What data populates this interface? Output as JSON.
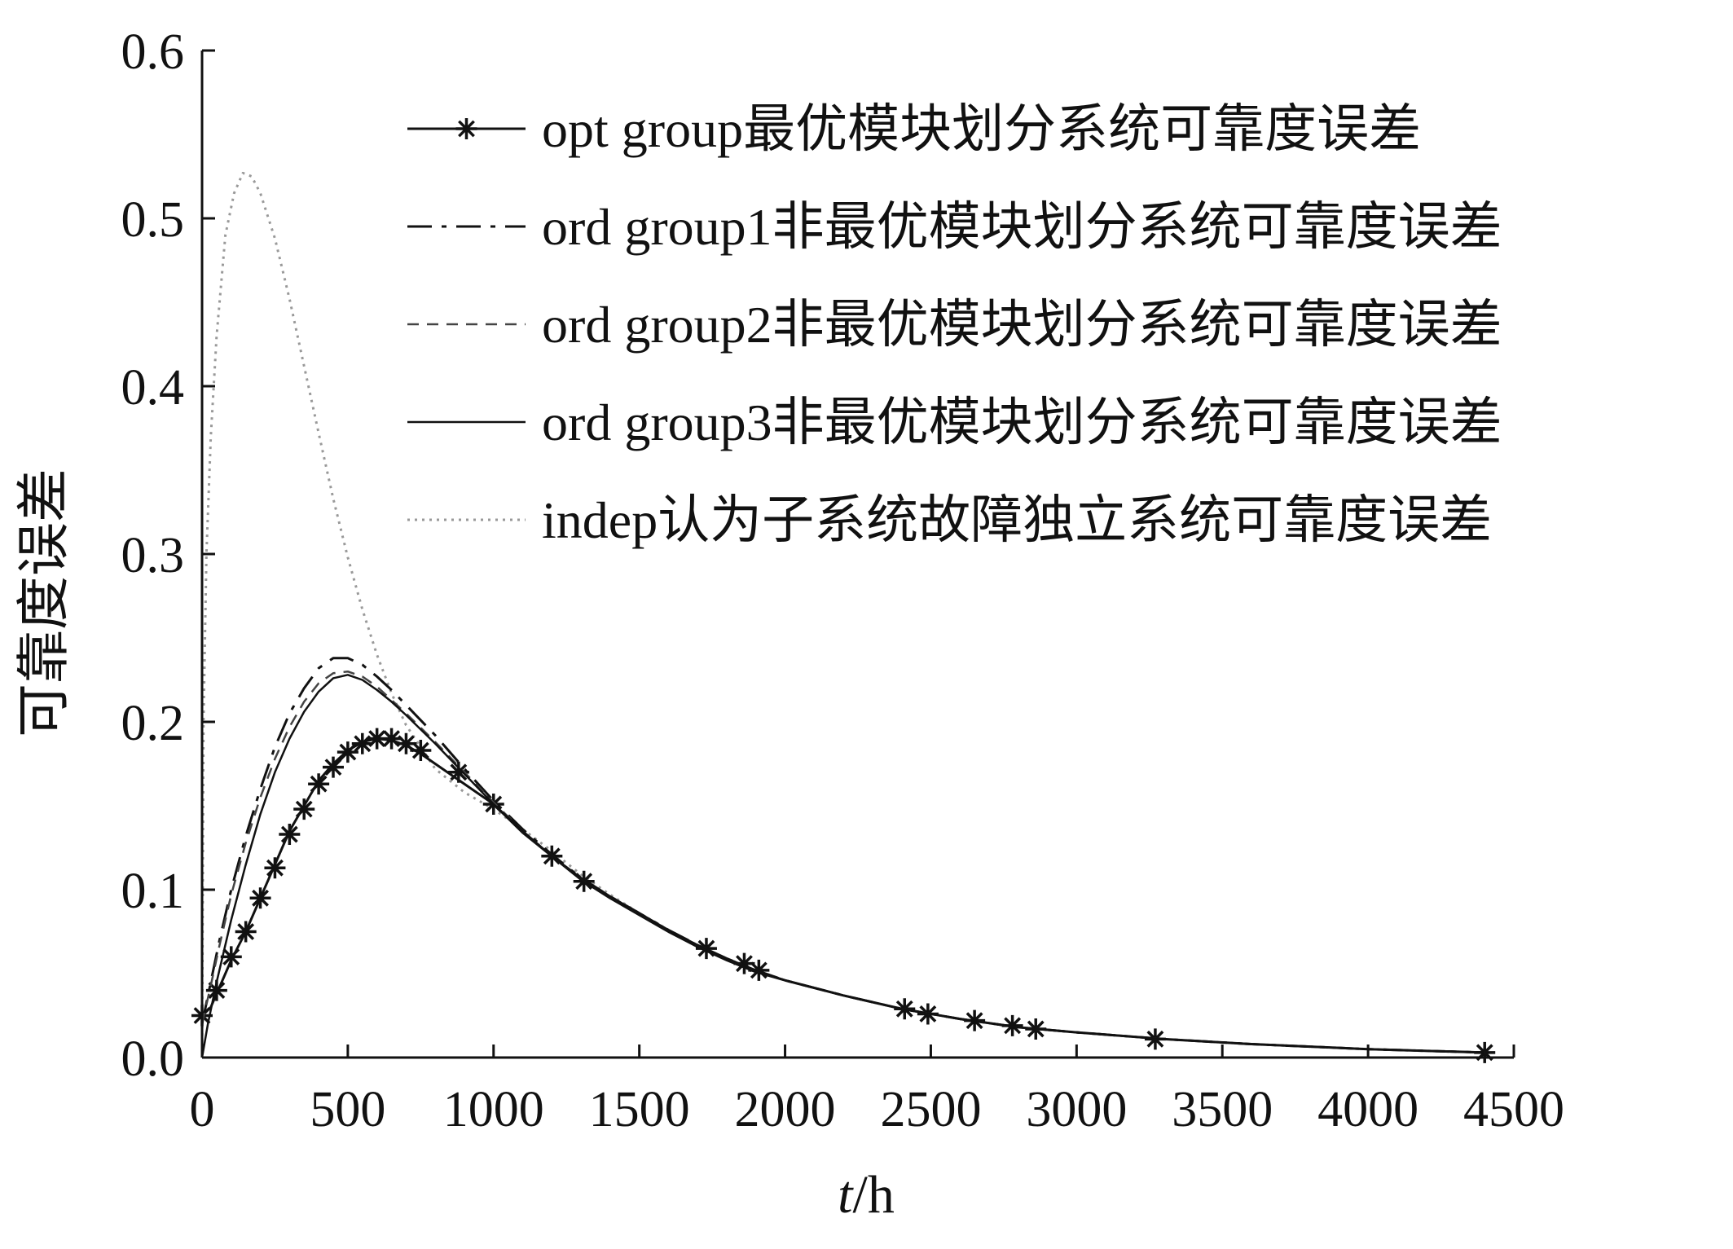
{
  "chart_data": {
    "type": "line",
    "xlabel_italic": "t",
    "xlabel_rest": "/h",
    "ylabel": "可靠度误差",
    "xlim": [
      0,
      4500
    ],
    "ylim": [
      0,
      0.6
    ],
    "x_ticks": [
      "0",
      "500",
      "1000",
      "1500",
      "2000",
      "2500",
      "3000",
      "3500",
      "4000",
      "4500"
    ],
    "y_ticks": [
      "0.0",
      "0.1",
      "0.2",
      "0.3",
      "0.4",
      "0.5",
      "0.6"
    ],
    "grid": false,
    "legend_position": "top-right",
    "series": [
      {
        "name": "opt group最优模块划分系统可靠度误差",
        "style": "solid-star",
        "color": "#111111",
        "points": [
          [
            0,
            0.025
          ],
          [
            30,
            0.03
          ],
          [
            60,
            0.042
          ],
          [
            100,
            0.058
          ],
          [
            150,
            0.075
          ],
          [
            200,
            0.095
          ],
          [
            250,
            0.115
          ],
          [
            300,
            0.135
          ],
          [
            350,
            0.15
          ],
          [
            400,
            0.165
          ],
          [
            450,
            0.175
          ],
          [
            500,
            0.183
          ],
          [
            550,
            0.188
          ],
          [
            600,
            0.19
          ],
          [
            650,
            0.189
          ],
          [
            700,
            0.186
          ],
          [
            750,
            0.181
          ],
          [
            800,
            0.175
          ],
          [
            900,
            0.163
          ],
          [
            1000,
            0.151
          ],
          [
            1100,
            0.134
          ],
          [
            1200,
            0.12
          ],
          [
            1300,
            0.106
          ],
          [
            1400,
            0.095
          ],
          [
            1500,
            0.085
          ],
          [
            1600,
            0.075
          ],
          [
            1700,
            0.066
          ],
          [
            1800,
            0.058
          ],
          [
            1900,
            0.051
          ],
          [
            2000,
            0.046
          ],
          [
            2200,
            0.037
          ],
          [
            2400,
            0.029
          ],
          [
            2600,
            0.023
          ],
          [
            2800,
            0.018
          ],
          [
            3000,
            0.015
          ],
          [
            3300,
            0.011
          ],
          [
            3600,
            0.008
          ],
          [
            4000,
            0.005
          ],
          [
            4400,
            0.003
          ]
        ],
        "markers": [
          [
            0,
            0.025
          ],
          [
            50,
            0.04
          ],
          [
            100,
            0.06
          ],
          [
            150,
            0.075
          ],
          [
            200,
            0.095
          ],
          [
            250,
            0.113
          ],
          [
            300,
            0.133
          ],
          [
            350,
            0.148
          ],
          [
            400,
            0.163
          ],
          [
            450,
            0.173
          ],
          [
            500,
            0.182
          ],
          [
            550,
            0.187
          ],
          [
            600,
            0.19
          ],
          [
            650,
            0.19
          ],
          [
            700,
            0.187
          ],
          [
            750,
            0.183
          ],
          [
            880,
            0.17
          ],
          [
            1000,
            0.151
          ],
          [
            1200,
            0.12
          ],
          [
            1310,
            0.105
          ],
          [
            1730,
            0.065
          ],
          [
            1860,
            0.056
          ],
          [
            1910,
            0.052
          ],
          [
            2410,
            0.029
          ],
          [
            2490,
            0.026
          ],
          [
            2650,
            0.022
          ],
          [
            2780,
            0.019
          ],
          [
            2860,
            0.017
          ],
          [
            3270,
            0.011
          ],
          [
            4400,
            0.003
          ]
        ]
      },
      {
        "name": "ord group1非最优模块划分系统可靠度误差",
        "style": "long-dash",
        "color": "#111111",
        "points": [
          [
            0,
            0.02
          ],
          [
            30,
            0.045
          ],
          [
            60,
            0.07
          ],
          [
            100,
            0.1
          ],
          [
            150,
            0.132
          ],
          [
            200,
            0.16
          ],
          [
            250,
            0.185
          ],
          [
            300,
            0.205
          ],
          [
            350,
            0.22
          ],
          [
            400,
            0.232
          ],
          [
            450,
            0.238
          ],
          [
            500,
            0.238
          ],
          [
            550,
            0.234
          ],
          [
            600,
            0.227
          ],
          [
            650,
            0.219
          ],
          [
            700,
            0.21
          ],
          [
            800,
            0.192
          ],
          [
            900,
            0.172
          ],
          [
            1000,
            0.153
          ],
          [
            1100,
            0.136
          ],
          [
            1200,
            0.121
          ],
          [
            1300,
            0.107
          ],
          [
            1400,
            0.096
          ],
          [
            1500,
            0.086
          ],
          [
            1600,
            0.076
          ],
          [
            1700,
            0.067
          ],
          [
            1800,
            0.059
          ],
          [
            1900,
            0.052
          ],
          [
            2000,
            0.046
          ],
          [
            2200,
            0.037
          ],
          [
            2400,
            0.029
          ],
          [
            2600,
            0.023
          ],
          [
            2800,
            0.018
          ],
          [
            3000,
            0.015
          ],
          [
            3300,
            0.011
          ],
          [
            3600,
            0.008
          ],
          [
            4000,
            0.005
          ],
          [
            4400,
            0.003
          ]
        ]
      },
      {
        "name": "ord group2非最优模块划分系统可靠度误差",
        "style": "short-dash",
        "color": "#444444",
        "points": [
          [
            0,
            0.02
          ],
          [
            30,
            0.043
          ],
          [
            60,
            0.067
          ],
          [
            100,
            0.097
          ],
          [
            150,
            0.128
          ],
          [
            200,
            0.155
          ],
          [
            250,
            0.178
          ],
          [
            300,
            0.197
          ],
          [
            350,
            0.212
          ],
          [
            400,
            0.223
          ],
          [
            450,
            0.229
          ],
          [
            500,
            0.23
          ],
          [
            550,
            0.227
          ],
          [
            600,
            0.221
          ],
          [
            650,
            0.213
          ],
          [
            700,
            0.205
          ],
          [
            800,
            0.188
          ],
          [
            900,
            0.17
          ],
          [
            1000,
            0.152
          ],
          [
            1100,
            0.135
          ],
          [
            1200,
            0.12
          ],
          [
            1300,
            0.107
          ],
          [
            1400,
            0.096
          ],
          [
            1500,
            0.086
          ],
          [
            1600,
            0.076
          ],
          [
            1700,
            0.067
          ],
          [
            1800,
            0.059
          ],
          [
            1900,
            0.052
          ],
          [
            2000,
            0.046
          ],
          [
            2200,
            0.037
          ],
          [
            2400,
            0.029
          ],
          [
            2600,
            0.023
          ],
          [
            2800,
            0.018
          ],
          [
            3000,
            0.015
          ],
          [
            3300,
            0.011
          ],
          [
            3600,
            0.008
          ],
          [
            4000,
            0.005
          ],
          [
            4400,
            0.003
          ]
        ]
      },
      {
        "name": "ord group3非最优模块划分系统可靠度误差",
        "style": "solid",
        "color": "#111111",
        "points": [
          [
            0,
            0.0
          ],
          [
            20,
            0.02
          ],
          [
            50,
            0.045
          ],
          [
            100,
            0.082
          ],
          [
            150,
            0.115
          ],
          [
            200,
            0.145
          ],
          [
            250,
            0.17
          ],
          [
            300,
            0.19
          ],
          [
            350,
            0.206
          ],
          [
            400,
            0.218
          ],
          [
            450,
            0.226
          ],
          [
            500,
            0.228
          ],
          [
            550,
            0.225
          ],
          [
            600,
            0.219
          ],
          [
            650,
            0.212
          ],
          [
            700,
            0.204
          ],
          [
            800,
            0.187
          ],
          [
            900,
            0.169
          ],
          [
            1000,
            0.151
          ],
          [
            1100,
            0.135
          ],
          [
            1200,
            0.12
          ],
          [
            1300,
            0.107
          ],
          [
            1400,
            0.096
          ],
          [
            1500,
            0.086
          ],
          [
            1600,
            0.076
          ],
          [
            1700,
            0.067
          ],
          [
            1800,
            0.059
          ],
          [
            1900,
            0.052
          ],
          [
            2000,
            0.046
          ],
          [
            2200,
            0.037
          ],
          [
            2400,
            0.029
          ],
          [
            2600,
            0.023
          ],
          [
            2800,
            0.018
          ],
          [
            3000,
            0.015
          ],
          [
            3300,
            0.011
          ],
          [
            3600,
            0.008
          ],
          [
            4000,
            0.005
          ],
          [
            4400,
            0.003
          ]
        ]
      },
      {
        "name": "indep认为子系统故障独立系统可靠度误差",
        "style": "dotted",
        "color": "#999999",
        "points": [
          [
            0,
            0.0
          ],
          [
            5,
            0.2
          ],
          [
            15,
            0.3
          ],
          [
            30,
            0.37
          ],
          [
            50,
            0.43
          ],
          [
            80,
            0.49
          ],
          [
            110,
            0.515
          ],
          [
            140,
            0.527
          ],
          [
            170,
            0.525
          ],
          [
            200,
            0.515
          ],
          [
            250,
            0.488
          ],
          [
            300,
            0.452
          ],
          [
            350,
            0.412
          ],
          [
            400,
            0.372
          ],
          [
            450,
            0.333
          ],
          [
            500,
            0.298
          ],
          [
            550,
            0.267
          ],
          [
            600,
            0.24
          ],
          [
            650,
            0.217
          ],
          [
            700,
            0.198
          ],
          [
            800,
            0.172
          ],
          [
            900,
            0.158
          ],
          [
            1000,
            0.148
          ],
          [
            1100,
            0.136
          ],
          [
            1200,
            0.123
          ],
          [
            1300,
            0.109
          ],
          [
            1400,
            0.097
          ],
          [
            1500,
            0.086
          ],
          [
            1600,
            0.076
          ],
          [
            1700,
            0.067
          ],
          [
            1800,
            0.059
          ],
          [
            1900,
            0.052
          ],
          [
            2000,
            0.046
          ],
          [
            2200,
            0.037
          ],
          [
            2400,
            0.029
          ],
          [
            2600,
            0.023
          ],
          [
            2800,
            0.018
          ],
          [
            3000,
            0.015
          ],
          [
            3300,
            0.011
          ],
          [
            3600,
            0.008
          ],
          [
            4000,
            0.005
          ],
          [
            4400,
            0.003
          ]
        ]
      }
    ]
  }
}
